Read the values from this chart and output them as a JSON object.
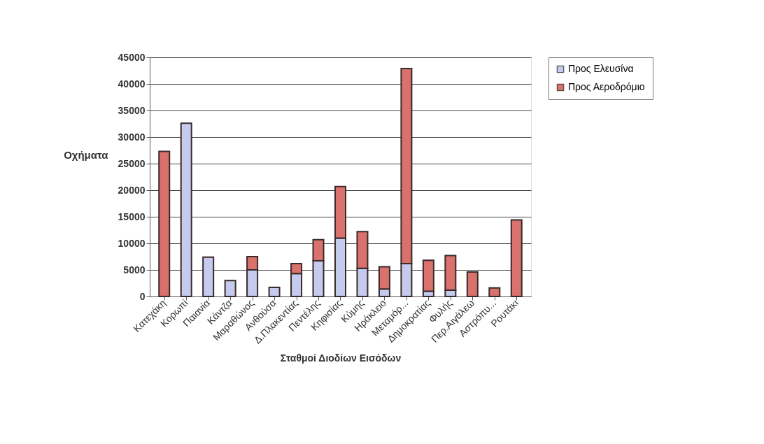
{
  "chart_data": {
    "type": "bar",
    "stacked": true,
    "xlabel": "Σταθμοί Διοδίων Εισόδων",
    "ylabel": "Οχήματα",
    "categories": [
      "Κατεχάκη",
      "Κορωπί",
      "Παιανία",
      "Κάντζα",
      "Μαραθώνος",
      "Ανθούσα",
      "Δ.Πλακεντίας",
      "Πεντέλης",
      "Κηφισίας",
      "Κύμης",
      "Ηράκλειο",
      "Μεταμόρ...",
      "Δημοκρατίας",
      "Φυλής",
      "Περ.Αιγάλεω",
      "Αστρόπυ...",
      "Ρουτάκι"
    ],
    "series": [
      {
        "name": "Προς Ελευσίνα",
        "color": "#c4cbee",
        "values": [
          0,
          32600,
          7400,
          3000,
          5000,
          1700,
          4300,
          6700,
          11000,
          5300,
          1400,
          6200,
          1000,
          1200,
          0,
          0,
          0
        ]
      },
      {
        "name": "Προς Αεροδρόμιο",
        "color": "#d9716c",
        "values": [
          27300,
          0,
          0,
          0,
          2500,
          0,
          1900,
          4000,
          9700,
          6900,
          4200,
          36700,
          5800,
          6500,
          4600,
          1600,
          14400
        ]
      }
    ],
    "ylim": [
      0,
      45000
    ],
    "yticks": [
      0,
      5000,
      10000,
      15000,
      20000,
      25000,
      30000,
      35000,
      40000,
      45000
    ],
    "grid": "y",
    "legend": "top right"
  }
}
